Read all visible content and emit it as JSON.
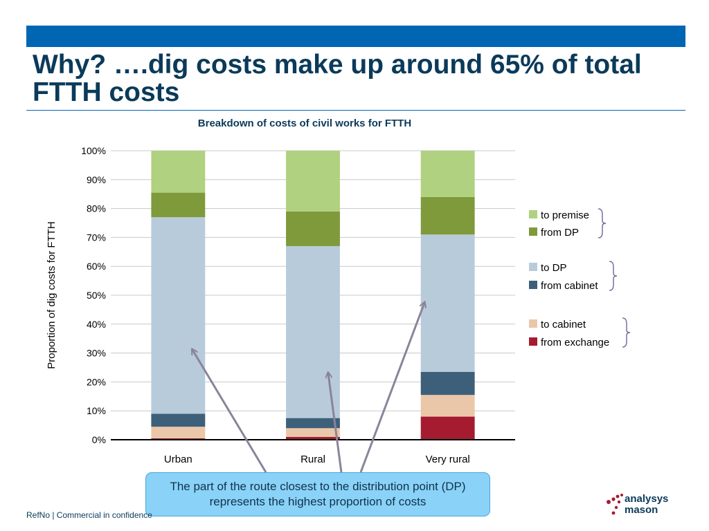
{
  "slide": {
    "title": "Why?  ….dig costs make up around 65% of total FTTH costs",
    "callout": "The part of the route closest to the distribution point (DP) represents the highest proportion of costs",
    "footer": "RefNo | Commercial in confidence",
    "logo_line1": "analysys",
    "logo_line2": "mason",
    "colors": {
      "brand_bar": "#0066b3",
      "title": "#0b3a5a",
      "callout_bg": "#8ad2f7",
      "arrow": "#8a8499",
      "bracket": "#7a6fa0"
    }
  },
  "chart_data": {
    "type": "bar",
    "stacked": true,
    "title": "Breakdown of costs of civil works for FTTH",
    "ylabel": "Proportion of dig costs for FTTH",
    "xlabel": "",
    "ylim": [
      0,
      100
    ],
    "yticks": [
      "0%",
      "10%",
      "20%",
      "30%",
      "40%",
      "50%",
      "60%",
      "70%",
      "80%",
      "90%",
      "100%"
    ],
    "grid": true,
    "legend_position": "right",
    "categories": [
      "Urban",
      "Rural",
      "Very rural"
    ],
    "series": [
      {
        "name": "from exchange",
        "color": "#a51c30",
        "values": [
          0.5,
          1,
          8
        ]
      },
      {
        "name": "to cabinet",
        "color": "#ebc7a9",
        "values": [
          4,
          3,
          7.5
        ]
      },
      {
        "name": "from cabinet",
        "color": "#3d5f7a",
        "values": [
          4.5,
          3.5,
          8
        ]
      },
      {
        "name": "to DP",
        "color": "#b8cbdb",
        "values": [
          68,
          59.5,
          47.5
        ]
      },
      {
        "name": "from DP",
        "color": "#7e9a3b",
        "values": [
          8.5,
          12,
          13
        ]
      },
      {
        "name": "to premise",
        "color": "#b0d17f",
        "values": [
          14.5,
          21,
          16
        ]
      }
    ],
    "legend_order": [
      "to premise",
      "from DP",
      "to DP",
      "from cabinet",
      "to cabinet",
      "from exchange"
    ]
  }
}
